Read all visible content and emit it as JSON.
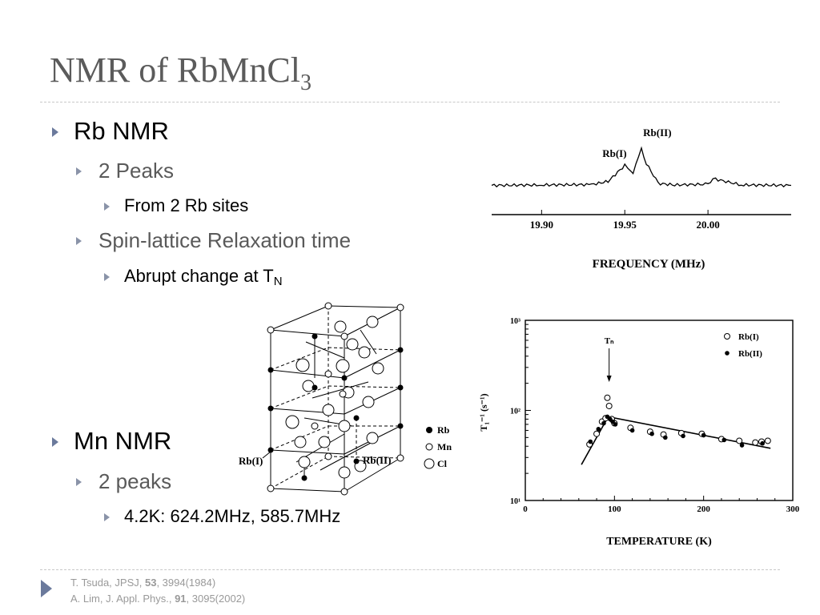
{
  "slide": {
    "title_main": "NMR of RbMnCl",
    "title_sub": "3"
  },
  "bullets": {
    "rb_nmr": "Rb NMR",
    "two_peaks": "2 Peaks",
    "from_sites": "From 2 Rb sites",
    "spin_lattice": "Spin-lattice Relaxation time",
    "abrupt": "Abrupt change at T",
    "abrupt_sub": "N",
    "mn_nmr": "Mn NMR",
    "two_peaks_mn": "2 peaks",
    "mn_values": "4.2K: 624.2MHz, 585.7MHz"
  },
  "spectrum": {
    "peak1": "Rb(I)",
    "peak2": "Rb(II)",
    "ticks": [
      "19.90",
      "19.95",
      "20.00"
    ],
    "xlabel": "FREQUENCY (MHz)"
  },
  "crystal": {
    "label_rb1": "Rb(I)",
    "label_rb2": "Rb(II)",
    "legend": [
      "Rb",
      "Mn",
      "Cl"
    ]
  },
  "relax_plot": {
    "y_ticks": [
      "10³",
      "10²",
      "10¹"
    ],
    "x_ticks": [
      "0",
      "100",
      "200",
      "300"
    ],
    "ylabel": "T₁⁻¹ (s⁻¹)",
    "xlabel": "TEMPERATURE (K)",
    "tn_label": "Tₙ",
    "legend": [
      "Rb(I)",
      "Rb(II)"
    ]
  },
  "footer": {
    "ref1_pre": "T. Tsuda, JPSJ, ",
    "ref1_bold": "53",
    "ref1_post": ", 3994(1984)",
    "ref2_pre": "A. Lim, J. Appl. Phys., ",
    "ref2_bold": "91",
    "ref2_post": ", 3095(2002)"
  },
  "chart_data": [
    {
      "type": "line",
      "title": "",
      "xlabel": "FREQUENCY (MHz)",
      "ylabel": "",
      "xlim": [
        19.87,
        20.05
      ],
      "x_ticks": [
        19.9,
        19.95,
        20.0
      ],
      "annotations": [
        {
          "text": "Rb(I)",
          "x": 19.95
        },
        {
          "text": "Rb(II)",
          "x": 19.962
        }
      ],
      "series": [
        {
          "x": [
            19.87,
            19.9,
            19.93,
            19.94,
            19.95,
            19.955,
            19.96,
            19.963,
            19.97,
            19.98,
            20.0,
            20.003,
            20.02,
            20.05
          ],
          "y": [
            0.05,
            0.06,
            0.07,
            0.15,
            0.55,
            0.38,
            0.95,
            0.6,
            0.1,
            0.06,
            0.08,
            0.22,
            0.06,
            0.05
          ]
        }
      ]
    },
    {
      "type": "scatter",
      "title": "",
      "xlabel": "TEMPERATURE (K)",
      "ylabel": "T₁⁻¹ (s⁻¹)",
      "xlim": [
        0,
        300
      ],
      "ylim": [
        10,
        1000
      ],
      "log_y": true,
      "legend": "top-right",
      "annotations": [
        {
          "text": "Tₙ",
          "x": 94
        }
      ],
      "series": [
        {
          "name": "Rb(I)",
          "x": [
            72,
            80,
            86,
            90,
            92,
            94,
            97,
            100,
            118,
            140,
            155,
            175,
            198,
            220,
            240,
            258,
            265,
            272
          ],
          "y": [
            42,
            55,
            75,
            82,
            138,
            112,
            80,
            72,
            64,
            58,
            54,
            56,
            55,
            48,
            46,
            44,
            45,
            46
          ]
        },
        {
          "name": "Rb(II)",
          "x": [
            73,
            82,
            88,
            92,
            95,
            98,
            101,
            120,
            142,
            157,
            177,
            200,
            223,
            243,
            266
          ],
          "y": [
            45,
            62,
            72,
            85,
            80,
            75,
            70,
            60,
            55,
            50,
            52,
            53,
            47,
            41,
            43
          ]
        },
        {
          "name": "fit",
          "x": [
            63,
            93,
            275
          ],
          "y": [
            25,
            85,
            38
          ]
        }
      ]
    }
  ]
}
